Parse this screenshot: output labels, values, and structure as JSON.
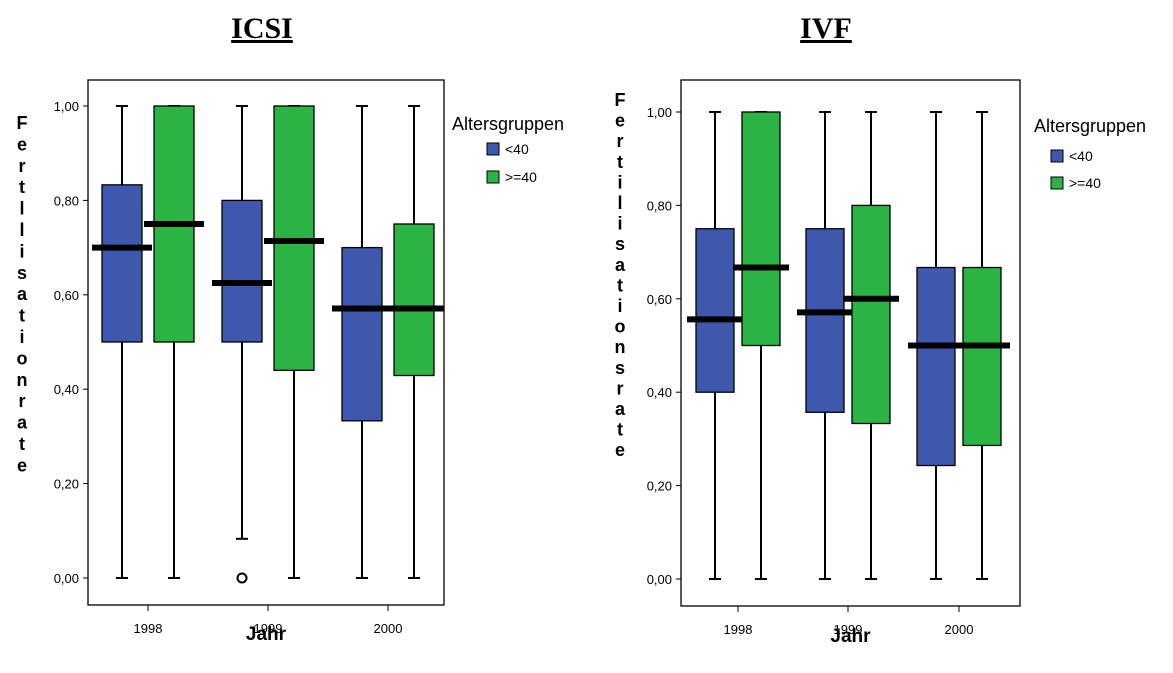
{
  "chart_data": [
    {
      "type": "boxplot",
      "title": "ICSI",
      "xlabel": "Jahr",
      "ylabel": "Fertllisationrate",
      "ylim": [
        -0.06,
        1.06
      ],
      "yticks": [
        "0,00",
        "0,20",
        "0,40",
        "0,60",
        "0,80",
        "1,00"
      ],
      "ytick_values": [
        0,
        0.2,
        0.4,
        0.6,
        0.8,
        1.0
      ],
      "categories": [
        "1998",
        "1999",
        "2000"
      ],
      "legend_title": "Altersgruppen",
      "legend_position": "right",
      "series": [
        {
          "name": "<40",
          "color": "#3d58ad",
          "boxes": [
            {
              "min": 0.0,
              "q1": 0.5,
              "median": 0.7,
              "q3": 0.833,
              "max": 1.0,
              "outliers": []
            },
            {
              "min": 0.083,
              "q1": 0.5,
              "median": 0.625,
              "q3": 0.8,
              "max": 1.0,
              "outliers": [
                0.0
              ]
            },
            {
              "min": 0.0,
              "q1": 0.333,
              "median": 0.571,
              "q3": 0.7,
              "max": 1.0,
              "outliers": []
            }
          ]
        },
        {
          "name": ">=40",
          "color": "#2bb443",
          "boxes": [
            {
              "min": 0.0,
              "q1": 0.5,
              "median": 0.75,
              "q3": 1.0,
              "max": 1.0,
              "outliers": []
            },
            {
              "min": 0.0,
              "q1": 0.44,
              "median": 0.714,
              "q3": 1.0,
              "max": 1.0,
              "outliers": []
            },
            {
              "min": 0.0,
              "q1": 0.429,
              "median": 0.571,
              "q3": 0.75,
              "max": 1.0,
              "outliers": []
            }
          ]
        }
      ]
    },
    {
      "type": "boxplot",
      "title": "IVF",
      "xlabel": "Jahr",
      "ylabel": "Fertilisationsrate",
      "ylim": [
        -0.06,
        1.06
      ],
      "yticks": [
        "0,00",
        "0,20",
        "0,40",
        "0,60",
        "0,80",
        "1,00"
      ],
      "ytick_values": [
        0,
        0.2,
        0.4,
        0.6,
        0.8,
        1.0
      ],
      "categories": [
        "1998",
        "1999",
        "2000"
      ],
      "legend_title": "Altersgruppen",
      "legend_position": "right",
      "series": [
        {
          "name": "<40",
          "color": "#3d58ad",
          "boxes": [
            {
              "min": 0.0,
              "q1": 0.4,
              "median": 0.556,
              "q3": 0.75,
              "max": 1.0,
              "outliers": []
            },
            {
              "min": 0.0,
              "q1": 0.357,
              "median": 0.571,
              "q3": 0.75,
              "max": 1.0,
              "outliers": []
            },
            {
              "min": 0.0,
              "q1": 0.243,
              "median": 0.5,
              "q3": 0.667,
              "max": 1.0,
              "outliers": []
            }
          ]
        },
        {
          "name": ">=40",
          "color": "#2bb443",
          "boxes": [
            {
              "min": 0.0,
              "q1": 0.5,
              "median": 0.667,
              "q3": 1.0,
              "max": 1.0,
              "outliers": []
            },
            {
              "min": 0.0,
              "q1": 0.333,
              "median": 0.6,
              "q3": 0.8,
              "max": 1.0,
              "outliers": []
            },
            {
              "min": 0.0,
              "q1": 0.286,
              "median": 0.5,
              "q3": 0.667,
              "max": 1.0,
              "outliers": []
            }
          ]
        }
      ]
    }
  ]
}
